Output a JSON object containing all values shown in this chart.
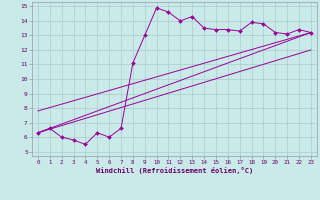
{
  "xlabel": "Windchill (Refroidissement éolien,°C)",
  "bg_color": "#caeaea",
  "line_color": "#990099",
  "grid_color": "#aacccc",
  "spine_color": "#9999aa",
  "xlim": [
    -0.5,
    23.5
  ],
  "ylim": [
    4.7,
    15.3
  ],
  "xticks": [
    0,
    1,
    2,
    3,
    4,
    5,
    6,
    7,
    8,
    9,
    10,
    11,
    12,
    13,
    14,
    15,
    16,
    17,
    18,
    19,
    20,
    21,
    22,
    23
  ],
  "yticks": [
    5,
    6,
    7,
    8,
    9,
    10,
    11,
    12,
    13,
    14,
    15
  ],
  "curve1_x": [
    0,
    1,
    2,
    3,
    4,
    5,
    6,
    7,
    8,
    9,
    10,
    11,
    12,
    13,
    14,
    15,
    16,
    17,
    18,
    19,
    20,
    21,
    22,
    23
  ],
  "curve1_y": [
    6.3,
    6.6,
    6.0,
    5.8,
    5.5,
    6.3,
    6.0,
    6.6,
    11.1,
    13.0,
    14.9,
    14.6,
    14.0,
    14.3,
    13.5,
    13.4,
    13.4,
    13.3,
    13.9,
    13.8,
    13.2,
    13.1,
    13.4,
    13.2
  ],
  "line2_x": [
    0,
    23
  ],
  "line2_y": [
    6.3,
    13.2
  ],
  "line3_x": [
    0,
    23
  ],
  "line3_y": [
    7.8,
    13.2
  ],
  "line4_x": [
    0,
    23
  ],
  "line4_y": [
    6.3,
    12.0
  ]
}
